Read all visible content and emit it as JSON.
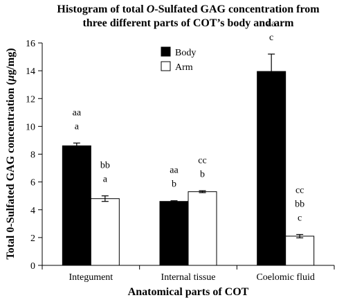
{
  "chart_data": {
    "type": "bar",
    "title_parts": [
      {
        "pre": "Histogram of total ",
        "em": "O",
        "post": "-Sulfated GAG concentration from"
      },
      {
        "pre": "three different parts of COT’s body and arm",
        "em": "",
        "post": ""
      }
    ],
    "xlabel": "Anatomical parts of COT",
    "ylabel_parts": {
      "pre": "Total 0-Sulfated GAG concentration (",
      "em": "μ",
      "post": "g/mg)"
    },
    "categories": [
      "Integument",
      "Internal tissue",
      "Coelomic fluid"
    ],
    "ylim": [
      0,
      16
    ],
    "yticks": [
      0,
      2,
      4,
      6,
      8,
      10,
      12,
      14,
      16
    ],
    "legend_position": "top-center",
    "series": [
      {
        "name": "Body",
        "color": "#000000",
        "values": [
          8.6,
          4.6,
          13.95
        ],
        "errors": [
          0.2,
          0.05,
          1.25
        ]
      },
      {
        "name": "Arm",
        "color": "#ffffff",
        "values": [
          4.8,
          5.3,
          2.1
        ],
        "errors": [
          0.2,
          0.07,
          0.12
        ]
      }
    ],
    "annotations": [
      {
        "series": 0,
        "category": 0,
        "lines": [
          "aa",
          "a"
        ]
      },
      {
        "series": 1,
        "category": 0,
        "lines": [
          "bb",
          "a"
        ]
      },
      {
        "series": 0,
        "category": 1,
        "lines": [
          "aa",
          "b"
        ]
      },
      {
        "series": 1,
        "category": 1,
        "lines": [
          "cc",
          "b"
        ]
      },
      {
        "series": 0,
        "category": 2,
        "lines": [
          "aa",
          "c"
        ]
      },
      {
        "series": 1,
        "category": 2,
        "lines": [
          "cc",
          "bb",
          "c"
        ]
      }
    ]
  }
}
